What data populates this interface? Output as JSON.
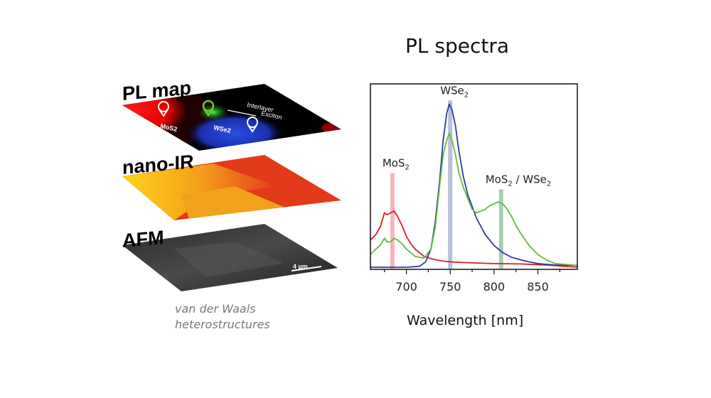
{
  "left_panel": {
    "layers": [
      {
        "label": "PL map",
        "annotations": {
          "mos2": "MoS2",
          "wse2": "WSe2",
          "interlayer": "Interlayer",
          "exciton": "Exciton"
        }
      },
      {
        "label": "nano-IR"
      },
      {
        "label": "AFM",
        "scale_bar": "4 µm"
      }
    ],
    "caption_line1": "van der Waals",
    "caption_line2": "heterostructures"
  },
  "chart_data": {
    "type": "line",
    "title": "PL spectra",
    "xlabel": "Wavelength [nm]",
    "ylabel": "",
    "xlim": [
      659,
      895
    ],
    "ylim": [
      0,
      1
    ],
    "xticks": [
      700,
      750,
      800,
      850
    ],
    "yticks": [],
    "grid": false,
    "series": [
      {
        "color": "#e01b1b",
        "x": [
          659,
          665,
          670,
          675,
          678,
          682,
          686,
          690,
          695,
          700,
          705,
          710,
          720,
          730,
          740,
          750,
          770,
          800,
          830,
          860,
          895
        ],
        "y": [
          0.15,
          0.18,
          0.22,
          0.3,
          0.29,
          0.3,
          0.31,
          0.28,
          0.23,
          0.17,
          0.13,
          0.1,
          0.06,
          0.045,
          0.035,
          0.03,
          0.025,
          0.02,
          0.018,
          0.012,
          0.0
        ]
      },
      {
        "color": "#2d3c9e",
        "x": [
          659,
          700,
          715,
          722,
          728,
          733,
          738,
          742,
          746,
          749,
          752,
          756,
          760,
          765,
          770,
          780,
          790,
          800,
          810,
          820,
          835,
          850,
          870,
          895
        ],
        "y": [
          0.0,
          0.0,
          0.005,
          0.03,
          0.1,
          0.25,
          0.48,
          0.7,
          0.85,
          0.9,
          0.87,
          0.78,
          0.64,
          0.5,
          0.4,
          0.27,
          0.18,
          0.12,
          0.08,
          0.055,
          0.035,
          0.02,
          0.012,
          0.01
        ]
      },
      {
        "color": "#66bb3a",
        "x": [
          659,
          665,
          670,
          675,
          678,
          682,
          686,
          690,
          695,
          700,
          705,
          710,
          720,
          728,
          733,
          738,
          742,
          746,
          749,
          752,
          756,
          760,
          765,
          770,
          775,
          780,
          785,
          790,
          795,
          800,
          805,
          810,
          815,
          820,
          825,
          830,
          840,
          850,
          860,
          870,
          895
        ],
        "y": [
          0.07,
          0.1,
          0.12,
          0.16,
          0.14,
          0.14,
          0.16,
          0.15,
          0.13,
          0.1,
          0.08,
          0.06,
          0.05,
          0.1,
          0.22,
          0.45,
          0.62,
          0.7,
          0.74,
          0.7,
          0.62,
          0.52,
          0.44,
          0.38,
          0.32,
          0.3,
          0.31,
          0.32,
          0.34,
          0.35,
          0.36,
          0.35,
          0.32,
          0.28,
          0.23,
          0.19,
          0.12,
          0.07,
          0.04,
          0.02,
          0.01
        ]
      }
    ],
    "markers": [
      {
        "x": 684,
        "height": 0.52,
        "color": "#f4b6bd",
        "label": "MoS",
        "subscript": "2"
      },
      {
        "x": 750,
        "height": 0.92,
        "color": "#b9bfdc",
        "label": "WSe",
        "subscript": "2"
      },
      {
        "x": 808,
        "height": 0.43,
        "color": "#a9cfb2",
        "label": "MoS",
        "subscript": "2",
        "label_suffix": " / WSe",
        "suffix_subscript": "2"
      }
    ]
  }
}
